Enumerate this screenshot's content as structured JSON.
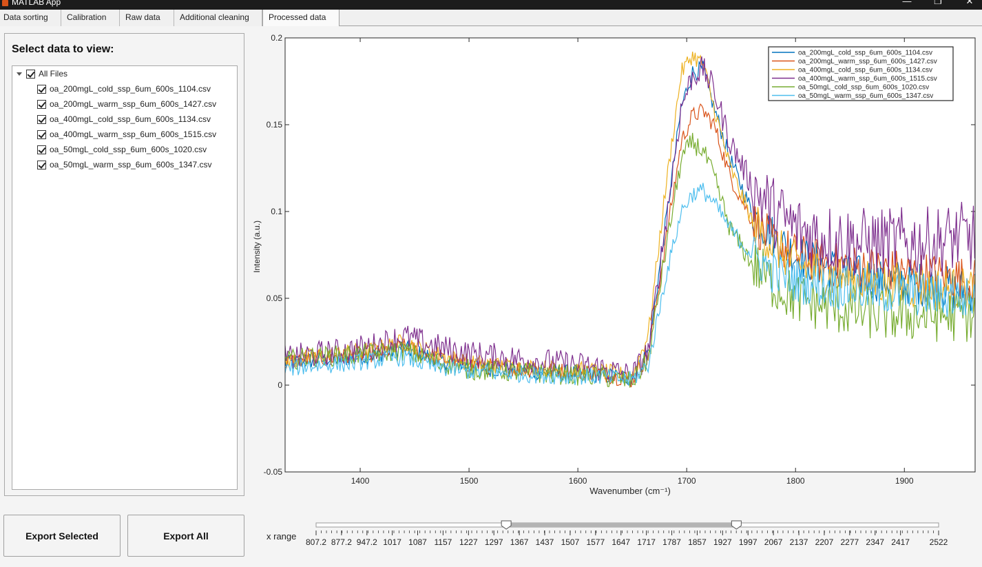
{
  "window": {
    "title": "MATLAB App",
    "controls": [
      "—",
      "❐",
      "✕"
    ]
  },
  "tabs": [
    "Data sorting",
    "Calibration",
    "Raw data",
    "Additional cleaning",
    "Processed data"
  ],
  "active_tab": "Processed data",
  "panel": {
    "heading": "Select data to view:",
    "root_label": "All Files",
    "files": [
      "oa_200mgL_cold_ssp_6um_600s_1104.csv",
      "oa_200mgL_warm_ssp_6um_600s_1427.csv",
      "oa_400mgL_cold_ssp_6um_600s_1134.csv",
      "oa_400mgL_warm_ssp_6um_600s_1515.csv",
      "oa_50mgL_cold_ssp_6um_600s_1020.csv",
      "oa_50mgL_warm_ssp_6um_600s_1347.csv"
    ]
  },
  "buttons": {
    "export_selected": "Export Selected",
    "export_all": "Export All"
  },
  "range": {
    "label": "x range",
    "min": 807.2,
    "max": 2522,
    "low": 1331,
    "high": 1965,
    "tick_labels": [
      "807.2",
      "877.2",
      "947.2",
      "1017",
      "1087",
      "1157",
      "1227",
      "1297",
      "1367",
      "1437",
      "1507",
      "1577",
      "1647",
      "1717",
      "1787",
      "1857",
      "1927",
      "1997",
      "2067",
      "2137",
      "2207",
      "2277",
      "2347",
      "2417",
      "2522"
    ]
  },
  "chart_data": {
    "type": "line",
    "xlabel": "Wavenumber  (cm⁻¹)",
    "ylabel": "Intensity (a.u.)",
    "xlim": [
      1331,
      1965
    ],
    "ylim": [
      -0.05,
      0.2
    ],
    "x_ticks": [
      1400,
      1500,
      1600,
      1700,
      1800,
      1900
    ],
    "y_ticks": [
      -0.05,
      0,
      0.05,
      0.1,
      0.15,
      0.2
    ],
    "y_tick_labels": [
      "-0.05",
      "0",
      "0.05",
      "0.1",
      "0.15",
      "0.2"
    ],
    "legend_position": "top-right",
    "x": [
      1331,
      1350,
      1380,
      1410,
      1440,
      1470,
      1500,
      1530,
      1560,
      1590,
      1620,
      1650,
      1665,
      1680,
      1695,
      1705,
      1715,
      1725,
      1740,
      1760,
      1780,
      1800,
      1830,
      1860,
      1890,
      1920,
      1950,
      1965
    ],
    "series": [
      {
        "name": "oa_200mgL_cold_ssp_6um_600s_1104.csv",
        "color": "#0072bd",
        "noise": 0.005,
        "values": [
          0.012,
          0.014,
          0.015,
          0.017,
          0.021,
          0.015,
          0.011,
          0.009,
          0.008,
          0.007,
          0.006,
          0.004,
          0.02,
          0.09,
          0.16,
          0.18,
          0.182,
          0.16,
          0.13,
          0.1,
          0.085,
          0.075,
          0.068,
          0.062,
          0.06,
          0.058,
          0.055,
          0.055
        ]
      },
      {
        "name": "oa_200mgL_warm_ssp_6um_600s_1427.csv",
        "color": "#d95319",
        "noise": 0.005,
        "values": [
          0.013,
          0.015,
          0.016,
          0.018,
          0.022,
          0.016,
          0.012,
          0.01,
          0.009,
          0.008,
          0.007,
          0.003,
          0.018,
          0.08,
          0.14,
          0.155,
          0.158,
          0.15,
          0.12,
          0.095,
          0.082,
          0.075,
          0.07,
          0.068,
          0.066,
          0.064,
          0.062,
          0.06
        ]
      },
      {
        "name": "oa_400mgL_cold_ssp_6um_600s_1134.csv",
        "color": "#edb120",
        "noise": 0.005,
        "values": [
          0.014,
          0.016,
          0.018,
          0.02,
          0.025,
          0.018,
          0.013,
          0.011,
          0.01,
          0.009,
          0.008,
          0.005,
          0.03,
          0.11,
          0.18,
          0.19,
          0.185,
          0.16,
          0.125,
          0.095,
          0.08,
          0.07,
          0.063,
          0.06,
          0.058,
          0.056,
          0.055,
          0.055
        ]
      },
      {
        "name": "oa_400mgL_warm_ssp_6um_600s_1515.csv",
        "color": "#7e2f8e",
        "noise": 0.008,
        "values": [
          0.015,
          0.017,
          0.019,
          0.022,
          0.028,
          0.022,
          0.018,
          0.016,
          0.014,
          0.012,
          0.01,
          0.005,
          0.02,
          0.09,
          0.16,
          0.178,
          0.182,
          0.17,
          0.14,
          0.115,
          0.1,
          0.09,
          0.085,
          0.082,
          0.082,
          0.082,
          0.085,
          0.085
        ]
      },
      {
        "name": "oa_50mgL_cold_ssp_6um_600s_1020.csv",
        "color": "#77ac30",
        "noise": 0.006,
        "values": [
          0.014,
          0.016,
          0.017,
          0.018,
          0.02,
          0.013,
          0.009,
          0.008,
          0.007,
          0.006,
          0.005,
          0.002,
          0.015,
          0.075,
          0.13,
          0.14,
          0.135,
          0.12,
          0.09,
          0.07,
          0.058,
          0.05,
          0.045,
          0.042,
          0.04,
          0.04,
          0.04,
          0.04
        ]
      },
      {
        "name": "oa_50mgL_warm_ssp_6um_600s_1347.csv",
        "color": "#4dbeee",
        "noise": 0.005,
        "values": [
          0.009,
          0.011,
          0.012,
          0.014,
          0.016,
          0.01,
          0.008,
          0.007,
          0.006,
          0.005,
          0.005,
          0.003,
          0.012,
          0.06,
          0.1,
          0.11,
          0.112,
          0.105,
          0.09,
          0.075,
          0.065,
          0.06,
          0.057,
          0.055,
          0.053,
          0.052,
          0.05,
          0.05
        ]
      }
    ]
  }
}
